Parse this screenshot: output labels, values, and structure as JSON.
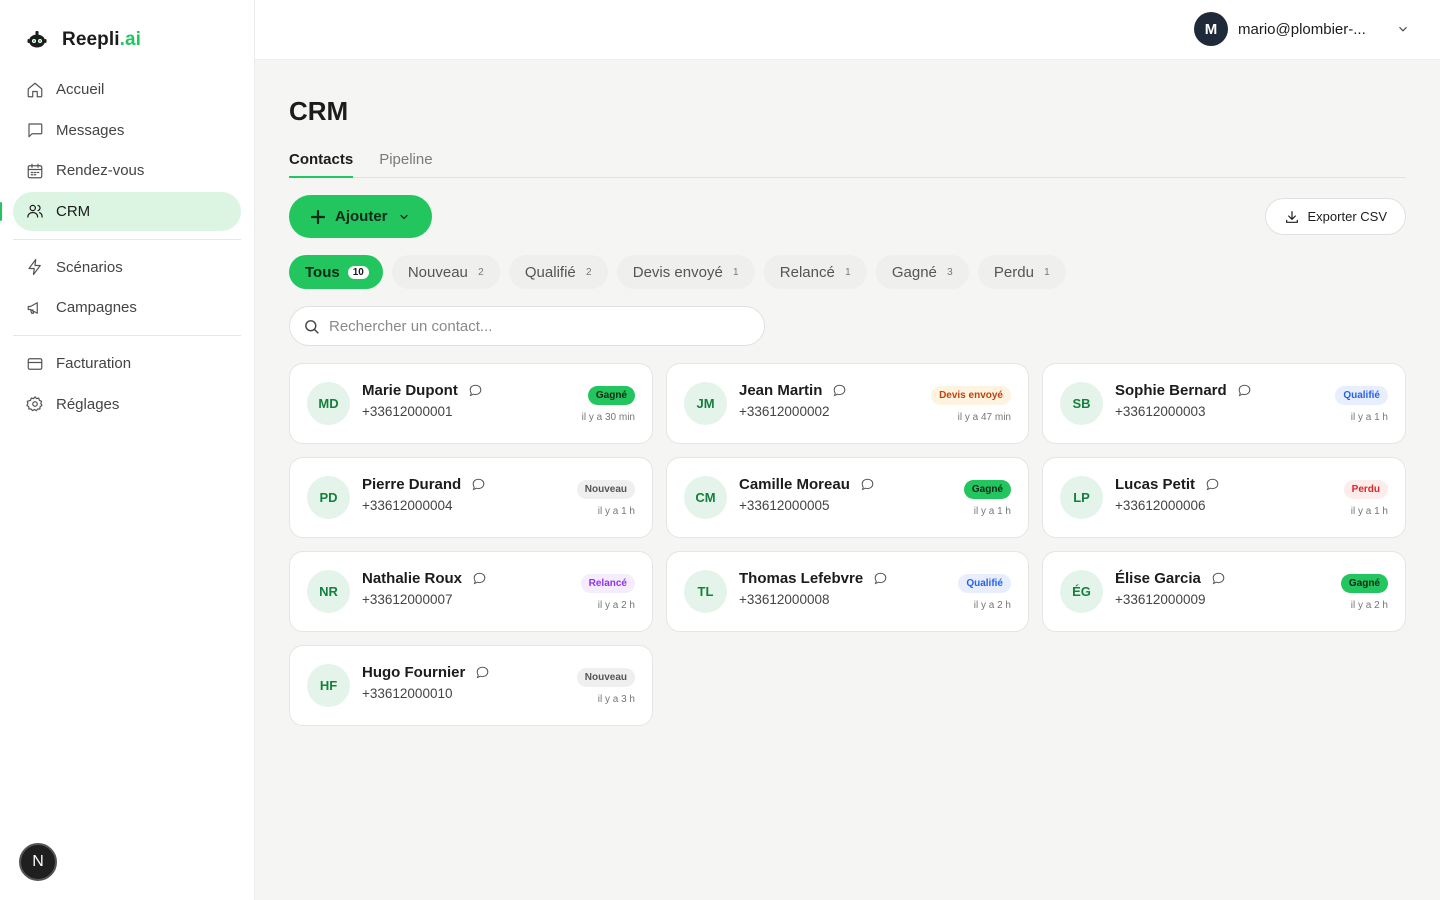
{
  "app": {
    "name_main": "Reepli",
    "name_suffix": ".ai"
  },
  "nav": {
    "group1": [
      {
        "label": "Accueil",
        "icon": "home-icon",
        "name": "sidebar-item-accueil"
      },
      {
        "label": "Messages",
        "icon": "message-square-icon",
        "name": "sidebar-item-messages"
      },
      {
        "label": "Rendez-vous",
        "icon": "calendar-icon",
        "name": "sidebar-item-rendez-vous"
      },
      {
        "label": "CRM",
        "icon": "users-icon",
        "name": "sidebar-item-crm",
        "active": true
      }
    ],
    "group2": [
      {
        "label": "Scénarios",
        "icon": "zap-icon",
        "name": "sidebar-item-scenarios"
      },
      {
        "label": "Campagnes",
        "icon": "megaphone-icon",
        "name": "sidebar-item-campagnes"
      }
    ],
    "group3": [
      {
        "label": "Facturation",
        "icon": "credit-card-icon",
        "name": "sidebar-item-facturation"
      },
      {
        "label": "Réglages",
        "icon": "settings-icon",
        "name": "sidebar-item-reglages"
      }
    ],
    "bottom_badge": "N"
  },
  "header": {
    "avatar_initial": "M",
    "email": "mario@plombier-..."
  },
  "page": {
    "title": "CRM",
    "tabs": [
      {
        "label": "Contacts",
        "active": true
      },
      {
        "label": "Pipeline",
        "active": false
      }
    ],
    "add_label": "Ajouter",
    "export_label": "Exporter CSV",
    "search_placeholder": "Rechercher un contact..."
  },
  "filters": [
    {
      "label": "Tous",
      "count": "10",
      "active": true
    },
    {
      "label": "Nouveau",
      "count": "2"
    },
    {
      "label": "Qualifié",
      "count": "2"
    },
    {
      "label": "Devis envoyé",
      "count": "1"
    },
    {
      "label": "Relancé",
      "count": "1"
    },
    {
      "label": "Gagné",
      "count": "3"
    },
    {
      "label": "Perdu",
      "count": "1"
    }
  ],
  "status_colors": {
    "Gagné": {
      "bg": "#22c55e",
      "fg": "#0f2a18"
    },
    "Devis envoyé": {
      "bg": "#fdf3e1",
      "fg": "#c2410c"
    },
    "Qualifié": {
      "bg": "#e8eefe",
      "fg": "#2563eb"
    },
    "Nouveau": {
      "bg": "#efefef",
      "fg": "#555555"
    },
    "Perdu": {
      "bg": "#fdecec",
      "fg": "#dc2626"
    },
    "Relancé": {
      "bg": "#f5ecfd",
      "fg": "#9333ea"
    }
  },
  "contacts": [
    {
      "initials": "MD",
      "name": "Marie Dupont",
      "phone": "+33612000001",
      "status": "Gagné",
      "ago": "il y a 30 min"
    },
    {
      "initials": "JM",
      "name": "Jean Martin",
      "phone": "+33612000002",
      "status": "Devis envoyé",
      "ago": "il y a 47 min"
    },
    {
      "initials": "SB",
      "name": "Sophie Bernard",
      "phone": "+33612000003",
      "status": "Qualifié",
      "ago": "il y a 1 h"
    },
    {
      "initials": "PD",
      "name": "Pierre Durand",
      "phone": "+33612000004",
      "status": "Nouveau",
      "ago": "il y a 1 h"
    },
    {
      "initials": "CM",
      "name": "Camille Moreau",
      "phone": "+33612000005",
      "status": "Gagné",
      "ago": "il y a 1 h"
    },
    {
      "initials": "LP",
      "name": "Lucas Petit",
      "phone": "+33612000006",
      "status": "Perdu",
      "ago": "il y a 1 h"
    },
    {
      "initials": "NR",
      "name": "Nathalie Roux",
      "phone": "+33612000007",
      "status": "Relancé",
      "ago": "il y a 2 h"
    },
    {
      "initials": "TL",
      "name": "Thomas Lefebvre",
      "phone": "+33612000008",
      "status": "Qualifié",
      "ago": "il y a 2 h"
    },
    {
      "initials": "ÉG",
      "name": "Élise Garcia",
      "phone": "+33612000009",
      "status": "Gagné",
      "ago": "il y a 2 h"
    },
    {
      "initials": "HF",
      "name": "Hugo Fournier",
      "phone": "+33612000010",
      "status": "Nouveau",
      "ago": "il y a 3 h"
    }
  ]
}
